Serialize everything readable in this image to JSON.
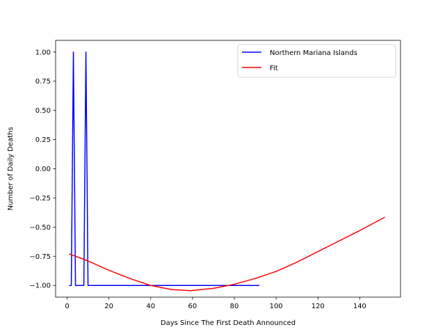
{
  "chart_data": {
    "type": "line",
    "xlabel": "Days Since The First Death Announced",
    "ylabel": "Number of Daily Deaths",
    "xlim": [
      -5.5,
      159.5
    ],
    "ylim": [
      -1.1,
      1.1
    ],
    "xticks": [
      0,
      20,
      40,
      60,
      80,
      100,
      120,
      140
    ],
    "yticks": [
      -1.0,
      -0.75,
      -0.5,
      -0.25,
      0.0,
      0.25,
      0.5,
      0.75,
      1.0
    ],
    "xtick_labels": [
      "0",
      "20",
      "40",
      "60",
      "80",
      "100",
      "120",
      "140"
    ],
    "ytick_labels": [
      "−1.00",
      "−0.75",
      "−0.50",
      "−0.25",
      "0.00",
      "0.25",
      "0.50",
      "0.75",
      "1.00"
    ],
    "grid": false,
    "legend_position": "top-right",
    "series": [
      {
        "name": "Northern Mariana Islands",
        "color": "#0000ff",
        "x": [
          1,
          2,
          3,
          4,
          5,
          6,
          7,
          8,
          9,
          10,
          92
        ],
        "y": [
          -1,
          -1,
          1,
          -1,
          -1,
          -1,
          -1,
          -1,
          1,
          -1,
          -1
        ]
      },
      {
        "name": "Fit",
        "color": "#ff0000",
        "x": [
          1,
          10,
          20,
          30,
          40,
          50,
          59,
          70,
          80,
          90,
          100,
          110,
          120,
          130,
          140,
          152
        ],
        "y": [
          -0.73,
          -0.79,
          -0.87,
          -0.94,
          -1.0,
          -1.035,
          -1.045,
          -1.025,
          -0.99,
          -0.94,
          -0.88,
          -0.8,
          -0.71,
          -0.62,
          -0.53,
          -0.415
        ]
      }
    ]
  }
}
